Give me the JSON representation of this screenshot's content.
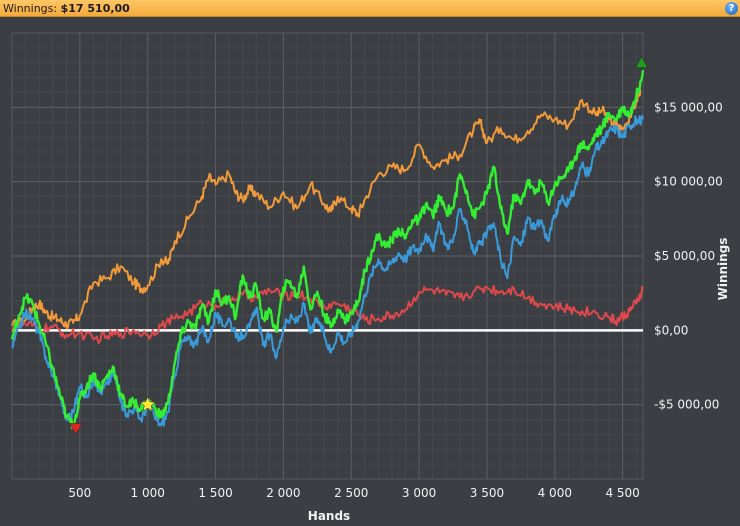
{
  "header": {
    "label": "Winnings:",
    "value": "$17 510,00",
    "help_icon": "?"
  },
  "colors": {
    "header_bg": "#f4a93a",
    "plot_bg": "#3b3e42",
    "grid": "#54585d",
    "zero_line": "#ffffff",
    "green": "#33ee33",
    "blue": "#3a9ad9",
    "orange": "#f29a3a",
    "red": "#e0494c"
  },
  "chart_data": {
    "type": "line",
    "xlabel": "Hands",
    "ylabel": "Winnings",
    "xlim": [
      0,
      4650
    ],
    "ylim": [
      -10000,
      20000
    ],
    "x_ticks": [
      {
        "value": 500,
        "label": "500"
      },
      {
        "value": 1000,
        "label": "1 000"
      },
      {
        "value": 1500,
        "label": "1 500"
      },
      {
        "value": 2000,
        "label": "2 000"
      },
      {
        "value": 2500,
        "label": "2 500"
      },
      {
        "value": 3000,
        "label": "3 000"
      },
      {
        "value": 3500,
        "label": "3 500"
      },
      {
        "value": 4000,
        "label": "4 000"
      },
      {
        "value": 4500,
        "label": "4 500"
      }
    ],
    "y_ticks": [
      {
        "value": 15000,
        "label": "$15 000,00"
      },
      {
        "value": 10000,
        "label": "$10 000,00"
      },
      {
        "value": 5000,
        "label": "$5 000,00"
      },
      {
        "value": 0,
        "label": "$0,00"
      },
      {
        "value": -5000,
        "label": "-$5 000,00"
      }
    ],
    "grid": true,
    "series": [
      {
        "color": "#f29a3a",
        "x": [
          0,
          100,
          150,
          200,
          250,
          300,
          350,
          400,
          450,
          500,
          600,
          700,
          800,
          900,
          950,
          1000,
          1100,
          1150,
          1200,
          1300,
          1400,
          1450,
          1500,
          1600,
          1650,
          1700,
          1750,
          1800,
          1900,
          2000,
          2100,
          2200,
          2300,
          2350,
          2400,
          2500,
          2550,
          2600,
          2700,
          2800,
          2900,
          3000,
          3100,
          3200,
          3300,
          3400,
          3450,
          3500,
          3600,
          3700,
          3800,
          3900,
          4000,
          4100,
          4200,
          4300,
          4350,
          4400,
          4450,
          4500,
          4550,
          4600,
          4630
        ],
        "y": [
          300,
          700,
          1500,
          1800,
          1200,
          900,
          700,
          400,
          500,
          1000,
          3200,
          3500,
          4300,
          3200,
          2800,
          3000,
          4800,
          4500,
          6000,
          7500,
          9000,
          10300,
          9800,
          10500,
          9200,
          8800,
          9500,
          9200,
          8300,
          9300,
          8200,
          9800,
          8500,
          8000,
          9000,
          8200,
          7800,
          8800,
          10500,
          11000,
          10800,
          12500,
          11000,
          11500,
          11800,
          13500,
          14000,
          12600,
          13600,
          12800,
          13400,
          14500,
          14200,
          13800,
          15500,
          14500,
          14800,
          14200,
          13800,
          13500,
          14300,
          15400,
          16200
        ]
      },
      {
        "color": "#e0494c",
        "x": [
          0,
          100,
          200,
          300,
          400,
          500,
          600,
          700,
          800,
          900,
          1000,
          1100,
          1200,
          1300,
          1400,
          1500,
          1600,
          1700,
          1800,
          1900,
          2000,
          2100,
          2200,
          2300,
          2400,
          2500,
          2600,
          2700,
          2800,
          2900,
          3000,
          3100,
          3200,
          3300,
          3400,
          3500,
          3600,
          3700,
          3800,
          3900,
          4000,
          4100,
          4200,
          4300,
          4400,
          4450,
          4500,
          4550,
          4600,
          4650
        ],
        "y": [
          200,
          400,
          100,
          200,
          -300,
          -200,
          -600,
          -400,
          -200,
          0,
          -300,
          300,
          800,
          1200,
          1800,
          1700,
          2100,
          2400,
          2200,
          2700,
          2300,
          2500,
          2100,
          1600,
          1800,
          1400,
          700,
          800,
          1000,
          1400,
          2600,
          2700,
          2400,
          2200,
          2600,
          2900,
          2600,
          2800,
          2200,
          1800,
          1600,
          1400,
          1300,
          1200,
          900,
          600,
          900,
          1300,
          1800,
          2800
        ]
      },
      {
        "color": "#3a9ad9",
        "x": [
          0,
          50,
          100,
          150,
          200,
          250,
          300,
          350,
          400,
          450,
          500,
          550,
          600,
          650,
          700,
          750,
          800,
          850,
          900,
          950,
          1000,
          1050,
          1100,
          1150,
          1200,
          1250,
          1300,
          1350,
          1400,
          1450,
          1500,
          1550,
          1600,
          1650,
          1700,
          1750,
          1800,
          1850,
          1900,
          1950,
          2000,
          2050,
          2100,
          2150,
          2200,
          2250,
          2300,
          2350,
          2400,
          2450,
          2500,
          2550,
          2600,
          2650,
          2700,
          2750,
          2800,
          2850,
          2900,
          2950,
          3000,
          3050,
          3100,
          3150,
          3200,
          3250,
          3300,
          3350,
          3400,
          3450,
          3500,
          3550,
          3600,
          3650,
          3700,
          3750,
          3800,
          3850,
          3900,
          3950,
          4000,
          4050,
          4100,
          4150,
          4200,
          4250,
          4300,
          4350,
          4400,
          4450,
          4500,
          4550,
          4600,
          4650
        ],
        "y": [
          -1200,
          200,
          1200,
          800,
          -200,
          -1800,
          -3000,
          -4200,
          -6000,
          -5500,
          -3800,
          -4500,
          -3200,
          -4200,
          -3600,
          -2800,
          -4800,
          -5600,
          -5200,
          -6000,
          -5000,
          -5800,
          -6400,
          -5500,
          -3000,
          -800,
          -600,
          -900,
          100,
          -700,
          1200,
          300,
          800,
          -500,
          -300,
          200,
          1500,
          -1000,
          -300,
          -1800,
          200,
          800,
          600,
          1700,
          -200,
          800,
          -300,
          -1500,
          -100,
          -800,
          -200,
          600,
          2400,
          3800,
          4800,
          4100,
          4600,
          5200,
          4800,
          5600,
          5400,
          6500,
          5400,
          7200,
          5700,
          6000,
          8100,
          7300,
          5200,
          5800,
          6500,
          7200,
          4800,
          3500,
          6300,
          5700,
          7600,
          6800,
          7400,
          6000,
          7700,
          8800,
          8500,
          9600,
          11200,
          10400,
          12200,
          12600,
          13400,
          13600,
          13000,
          13800,
          14100,
          14200
        ]
      },
      {
        "color": "#33ee33",
        "x": [
          0,
          50,
          100,
          150,
          200,
          250,
          300,
          350,
          400,
          450,
          500,
          550,
          600,
          650,
          700,
          750,
          800,
          850,
          900,
          950,
          1000,
          1050,
          1100,
          1150,
          1200,
          1250,
          1300,
          1350,
          1400,
          1450,
          1500,
          1550,
          1600,
          1650,
          1700,
          1750,
          1800,
          1850,
          1900,
          1950,
          2000,
          2050,
          2100,
          2150,
          2200,
          2250,
          2300,
          2350,
          2400,
          2450,
          2500,
          2550,
          2600,
          2650,
          2700,
          2750,
          2800,
          2850,
          2900,
          2950,
          3000,
          3050,
          3100,
          3150,
          3200,
          3250,
          3300,
          3350,
          3400,
          3450,
          3500,
          3550,
          3600,
          3650,
          3700,
          3750,
          3800,
          3850,
          3900,
          3950,
          4000,
          4050,
          4100,
          4150,
          4200,
          4250,
          4300,
          4350,
          4400,
          4450,
          4500,
          4550,
          4600,
          4650
        ],
        "y": [
          -600,
          1000,
          2200,
          1800,
          400,
          -900,
          -2600,
          -4200,
          -5800,
          -6400,
          -4600,
          -3800,
          -2900,
          -3900,
          -3100,
          -2500,
          -4400,
          -5100,
          -4800,
          -5300,
          -4800,
          -5200,
          -5800,
          -4900,
          -2200,
          -200,
          600,
          100,
          1700,
          600,
          2700,
          1800,
          2300,
          900,
          3700,
          2200,
          3000,
          800,
          1200,
          -100,
          2900,
          3300,
          2200,
          4300,
          1400,
          2600,
          1100,
          200,
          1400,
          700,
          1100,
          1900,
          4000,
          5300,
          6400,
          5600,
          6100,
          6800,
          6200,
          7400,
          7400,
          8500,
          7700,
          8900,
          8000,
          8200,
          10500,
          9400,
          7700,
          8300,
          9200,
          11000,
          8200,
          6500,
          9100,
          8500,
          10100,
          9200,
          10000,
          8600,
          9800,
          10300,
          10700,
          11700,
          12600,
          12200,
          13200,
          13600,
          14600,
          14200,
          15000,
          14500,
          15700,
          17500
        ]
      }
    ],
    "markers": [
      {
        "shape": "triangle-down",
        "color": "#e02424",
        "x": 470,
        "y": -6600
      },
      {
        "shape": "star",
        "color": "#ffe83a",
        "x": 1000,
        "y": -5000
      },
      {
        "shape": "triangle-up",
        "color": "#1e9e1e",
        "x": 4640,
        "y": 18000
      }
    ]
  }
}
